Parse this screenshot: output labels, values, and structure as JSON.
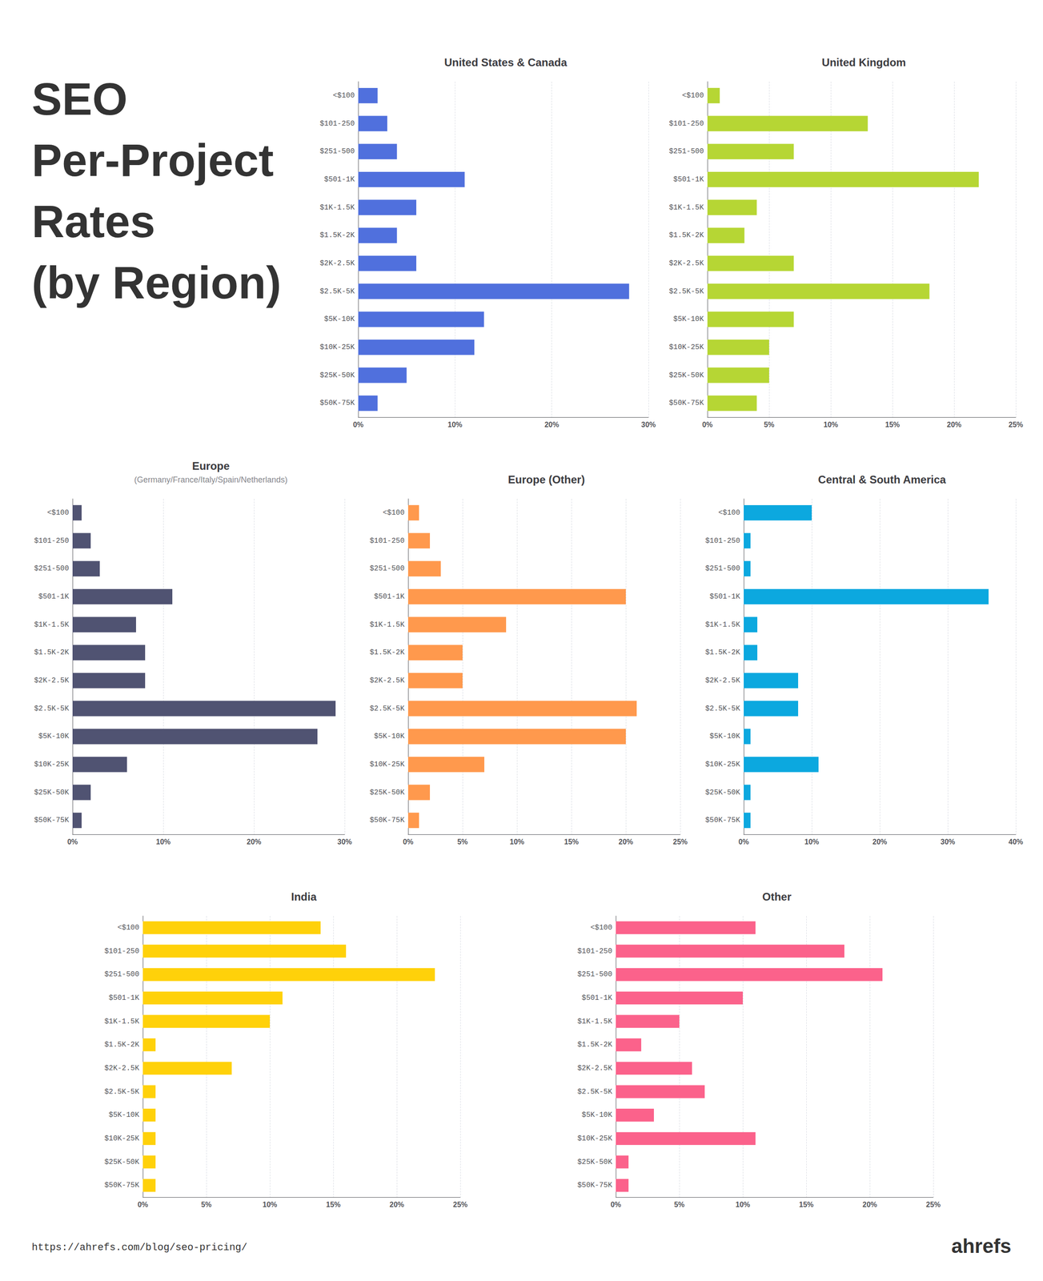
{
  "title": "SEO\nPer-Project\nRates\n(by Region)",
  "annotations": [
    "https://ahrefs.com/blog/seo-pricing/",
    "ahrefs"
  ],
  "chart_data": [
    {
      "type": "bar",
      "orientation": "horizontal",
      "grid": true,
      "title": "United States & Canada",
      "categories": [
        "<$100",
        "$101-250",
        "$251-500",
        "$501-1K",
        "$1K-1.5K",
        "$1.5K-2K",
        "$2K-2.5K",
        "$2.5K-5K",
        "$5K-10K",
        "$10K-25K",
        "$25K-50K",
        "$50K-75K"
      ],
      "values": [
        2,
        3,
        4,
        11,
        6,
        4,
        6,
        28,
        13,
        12,
        5,
        2
      ],
      "xlim": [
        0,
        30
      ],
      "xticks": [
        {
          "value": 0,
          "label": "0%"
        },
        {
          "value": 10,
          "label": "10%"
        },
        {
          "value": 20,
          "label": "20%"
        },
        {
          "value": 30,
          "label": "30%"
        }
      ]
    },
    {
      "type": "bar",
      "orientation": "horizontal",
      "grid": true,
      "title": "United Kingdom",
      "categories": [
        "<$100",
        "$101-250",
        "$251-500",
        "$501-1K",
        "$1K-1.5K",
        "$1.5K-2K",
        "$2K-2.5K",
        "$2.5K-5K",
        "$5K-10K",
        "$10K-25K",
        "$25K-50K",
        "$50K-75K"
      ],
      "values": [
        1,
        13,
        7,
        22,
        4,
        3,
        7,
        18,
        7,
        5,
        5,
        4
      ],
      "xlim": [
        0,
        25
      ],
      "xticks": [
        {
          "value": 0,
          "label": "0%"
        },
        {
          "value": 5,
          "label": "5%"
        },
        {
          "value": 10,
          "label": "10%"
        },
        {
          "value": 15,
          "label": "15%"
        },
        {
          "value": 20,
          "label": "20%"
        },
        {
          "value": 25,
          "label": "25%"
        }
      ]
    },
    {
      "type": "bar",
      "orientation": "horizontal",
      "grid": true,
      "title": "Europe",
      "subtitle": "(Germany/France/Italy/Spain/Netherlands)",
      "categories": [
        "<$100",
        "$101-250",
        "$251-500",
        "$501-1K",
        "$1K-1.5K",
        "$1.5K-2K",
        "$2K-2.5K",
        "$2.5K-5K",
        "$5K-10K",
        "$10K-25K",
        "$25K-50K",
        "$50K-75K"
      ],
      "values": [
        1,
        2,
        3,
        11,
        7,
        8,
        8,
        29,
        27,
        6,
        2,
        1
      ],
      "xlim": [
        0,
        30
      ],
      "xticks": [
        {
          "value": 0,
          "label": "0%"
        },
        {
          "value": 10,
          "label": "10%"
        },
        {
          "value": 20,
          "label": "20%"
        },
        {
          "value": 30,
          "label": "30%"
        }
      ]
    },
    {
      "type": "bar",
      "orientation": "horizontal",
      "grid": true,
      "title": "Europe (Other)",
      "categories": [
        "<$100",
        "$101-250",
        "$251-500",
        "$501-1K",
        "$1K-1.5K",
        "$1.5K-2K",
        "$2K-2.5K",
        "$2.5K-5K",
        "$5K-10K",
        "$10K-25K",
        "$25K-50K",
        "$50K-75K"
      ],
      "values": [
        1,
        2,
        3,
        20,
        9,
        5,
        5,
        21,
        20,
        7,
        2,
        1
      ],
      "xlim": [
        0,
        25
      ],
      "xticks": [
        {
          "value": 0,
          "label": "0%"
        },
        {
          "value": 5,
          "label": "5%"
        },
        {
          "value": 10,
          "label": "10%"
        },
        {
          "value": 15,
          "label": "15%"
        },
        {
          "value": 20,
          "label": "20%"
        },
        {
          "value": 25,
          "label": "25%"
        }
      ]
    },
    {
      "type": "bar",
      "orientation": "horizontal",
      "grid": true,
      "title": "Central & South America",
      "categories": [
        "<$100",
        "$101-250",
        "$251-500",
        "$501-1K",
        "$1K-1.5K",
        "$1.5K-2K",
        "$2K-2.5K",
        "$2.5K-5K",
        "$5K-10K",
        "$10K-25K",
        "$25K-50K",
        "$50K-75K"
      ],
      "values": [
        10,
        1,
        1,
        36,
        2,
        2,
        8,
        8,
        1,
        11,
        1,
        1
      ],
      "xlim": [
        0,
        40
      ],
      "xticks": [
        {
          "value": 0,
          "label": "0%"
        },
        {
          "value": 10,
          "label": "10%"
        },
        {
          "value": 20,
          "label": "20%"
        },
        {
          "value": 30,
          "label": "30%"
        },
        {
          "value": 40,
          "label": "40%"
        }
      ]
    },
    {
      "type": "bar",
      "orientation": "horizontal",
      "grid": true,
      "title": "India",
      "categories": [
        "<$100",
        "$101-250",
        "$251-500",
        "$501-1K",
        "$1K-1.5K",
        "$1.5K-2K",
        "$2K-2.5K",
        "$2.5K-5K",
        "$5K-10K",
        "$10K-25K",
        "$25K-50K",
        "$50K-75K"
      ],
      "values": [
        14,
        16,
        23,
        11,
        10,
        1,
        7,
        1,
        1,
        1,
        1,
        1
      ],
      "xlim": [
        0,
        25
      ],
      "xticks": [
        {
          "value": 0,
          "label": "0%"
        },
        {
          "value": 5,
          "label": "5%"
        },
        {
          "value": 10,
          "label": "10%"
        },
        {
          "value": 15,
          "label": "15%"
        },
        {
          "value": 20,
          "label": "20%"
        },
        {
          "value": 25,
          "label": "25%"
        }
      ]
    },
    {
      "type": "bar",
      "orientation": "horizontal",
      "grid": true,
      "title": "Other",
      "categories": [
        "<$100",
        "$101-250",
        "$251-500",
        "$501-1K",
        "$1K-1.5K",
        "$1.5K-2K",
        "$2K-2.5K",
        "$2.5K-5K",
        "$5K-10K",
        "$10K-25K",
        "$25K-50K",
        "$50K-75K"
      ],
      "values": [
        11,
        18,
        21,
        10,
        5,
        2,
        6,
        7,
        3,
        11,
        1,
        1
      ],
      "xlim": [
        0,
        25
      ],
      "xticks": [
        {
          "value": 0,
          "label": "0%"
        },
        {
          "value": 5,
          "label": "5%"
        },
        {
          "value": 10,
          "label": "10%"
        },
        {
          "value": 15,
          "label": "15%"
        },
        {
          "value": 20,
          "label": "20%"
        },
        {
          "value": 25,
          "label": "25%"
        }
      ]
    }
  ]
}
